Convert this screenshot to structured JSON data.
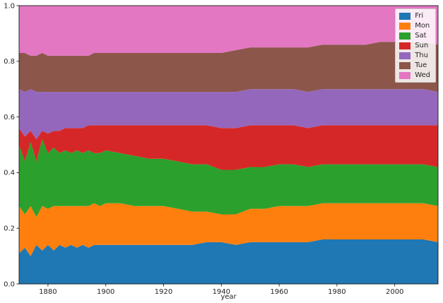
{
  "chart_data": {
    "type": "area",
    "stacked": true,
    "normalized": true,
    "title": "",
    "xlabel": "year",
    "ylabel": "",
    "xlim": [
      1870,
      2015
    ],
    "ylim": [
      0,
      1
    ],
    "grid": false,
    "legend_position": "upper right",
    "xticks": [
      1880,
      1900,
      1920,
      1940,
      1960,
      1980,
      2000
    ],
    "yticks": [
      0,
      0.2,
      0.4,
      0.6,
      0.8,
      1.0
    ],
    "ytick_labels": [
      "0.0",
      "0.2",
      "0.4",
      "0.6",
      "0.8",
      "1.0"
    ],
    "x": [
      1870,
      1872,
      1874,
      1876,
      1878,
      1880,
      1882,
      1884,
      1886,
      1888,
      1890,
      1892,
      1894,
      1896,
      1898,
      1900,
      1905,
      1910,
      1915,
      1920,
      1925,
      1930,
      1935,
      1940,
      1945,
      1950,
      1955,
      1960,
      1965,
      1970,
      1975,
      1980,
      1985,
      1990,
      1995,
      2000,
      2005,
      2010,
      2015
    ],
    "series": [
      {
        "name": "Fri",
        "color": "#1f77b4",
        "values": [
          0.11,
          0.13,
          0.1,
          0.14,
          0.12,
          0.14,
          0.12,
          0.14,
          0.13,
          0.14,
          0.13,
          0.14,
          0.13,
          0.14,
          0.14,
          0.14,
          0.14,
          0.14,
          0.14,
          0.14,
          0.14,
          0.14,
          0.15,
          0.15,
          0.14,
          0.15,
          0.15,
          0.15,
          0.15,
          0.15,
          0.16,
          0.16,
          0.16,
          0.16,
          0.16,
          0.16,
          0.16,
          0.16,
          0.15
        ]
      },
      {
        "name": "Mon",
        "color": "#ff7f0e",
        "values": [
          0.17,
          0.12,
          0.18,
          0.1,
          0.16,
          0.13,
          0.16,
          0.14,
          0.15,
          0.14,
          0.15,
          0.14,
          0.15,
          0.15,
          0.14,
          0.15,
          0.15,
          0.14,
          0.14,
          0.14,
          0.13,
          0.12,
          0.11,
          0.1,
          0.11,
          0.12,
          0.12,
          0.13,
          0.13,
          0.13,
          0.13,
          0.13,
          0.13,
          0.13,
          0.13,
          0.13,
          0.13,
          0.13,
          0.13
        ]
      },
      {
        "name": "Sat",
        "color": "#2ca02c",
        "values": [
          0.22,
          0.19,
          0.23,
          0.2,
          0.24,
          0.2,
          0.21,
          0.19,
          0.2,
          0.19,
          0.2,
          0.19,
          0.2,
          0.18,
          0.19,
          0.19,
          0.18,
          0.18,
          0.17,
          0.17,
          0.17,
          0.17,
          0.17,
          0.16,
          0.16,
          0.15,
          0.15,
          0.15,
          0.15,
          0.14,
          0.14,
          0.14,
          0.14,
          0.14,
          0.14,
          0.14,
          0.14,
          0.14,
          0.14
        ]
      },
      {
        "name": "Sun",
        "color": "#d62728",
        "values": [
          0.06,
          0.09,
          0.04,
          0.08,
          0.03,
          0.07,
          0.06,
          0.08,
          0.08,
          0.09,
          0.08,
          0.09,
          0.09,
          0.1,
          0.1,
          0.09,
          0.1,
          0.11,
          0.12,
          0.12,
          0.13,
          0.14,
          0.14,
          0.15,
          0.15,
          0.15,
          0.15,
          0.14,
          0.14,
          0.14,
          0.14,
          0.14,
          0.14,
          0.14,
          0.14,
          0.14,
          0.14,
          0.14,
          0.15
        ]
      },
      {
        "name": "Thu",
        "color": "#9467bd",
        "values": [
          0.14,
          0.16,
          0.15,
          0.17,
          0.14,
          0.15,
          0.14,
          0.14,
          0.13,
          0.13,
          0.13,
          0.13,
          0.12,
          0.12,
          0.12,
          0.12,
          0.12,
          0.12,
          0.12,
          0.12,
          0.12,
          0.12,
          0.12,
          0.13,
          0.13,
          0.13,
          0.13,
          0.13,
          0.13,
          0.13,
          0.13,
          0.13,
          0.13,
          0.13,
          0.13,
          0.13,
          0.13,
          0.13,
          0.12
        ]
      },
      {
        "name": "Tue",
        "color": "#8c564b",
        "values": [
          0.13,
          0.14,
          0.12,
          0.13,
          0.14,
          0.13,
          0.13,
          0.13,
          0.13,
          0.13,
          0.13,
          0.13,
          0.13,
          0.14,
          0.14,
          0.14,
          0.14,
          0.14,
          0.14,
          0.14,
          0.14,
          0.14,
          0.14,
          0.14,
          0.15,
          0.15,
          0.15,
          0.15,
          0.15,
          0.16,
          0.16,
          0.16,
          0.16,
          0.16,
          0.17,
          0.17,
          0.17,
          0.17,
          0.17
        ]
      },
      {
        "name": "Wed",
        "color": "#e377c2",
        "values": [
          0.17,
          0.17,
          0.18,
          0.18,
          0.17,
          0.18,
          0.18,
          0.18,
          0.18,
          0.18,
          0.18,
          0.18,
          0.18,
          0.17,
          0.17,
          0.17,
          0.17,
          0.17,
          0.17,
          0.17,
          0.17,
          0.17,
          0.17,
          0.17,
          0.16,
          0.15,
          0.15,
          0.15,
          0.15,
          0.15,
          0.14,
          0.14,
          0.14,
          0.14,
          0.13,
          0.13,
          0.13,
          0.13,
          0.14
        ]
      }
    ],
    "legend": [
      "Fri",
      "Mon",
      "Sat",
      "Sun",
      "Thu",
      "Tue",
      "Wed"
    ]
  }
}
